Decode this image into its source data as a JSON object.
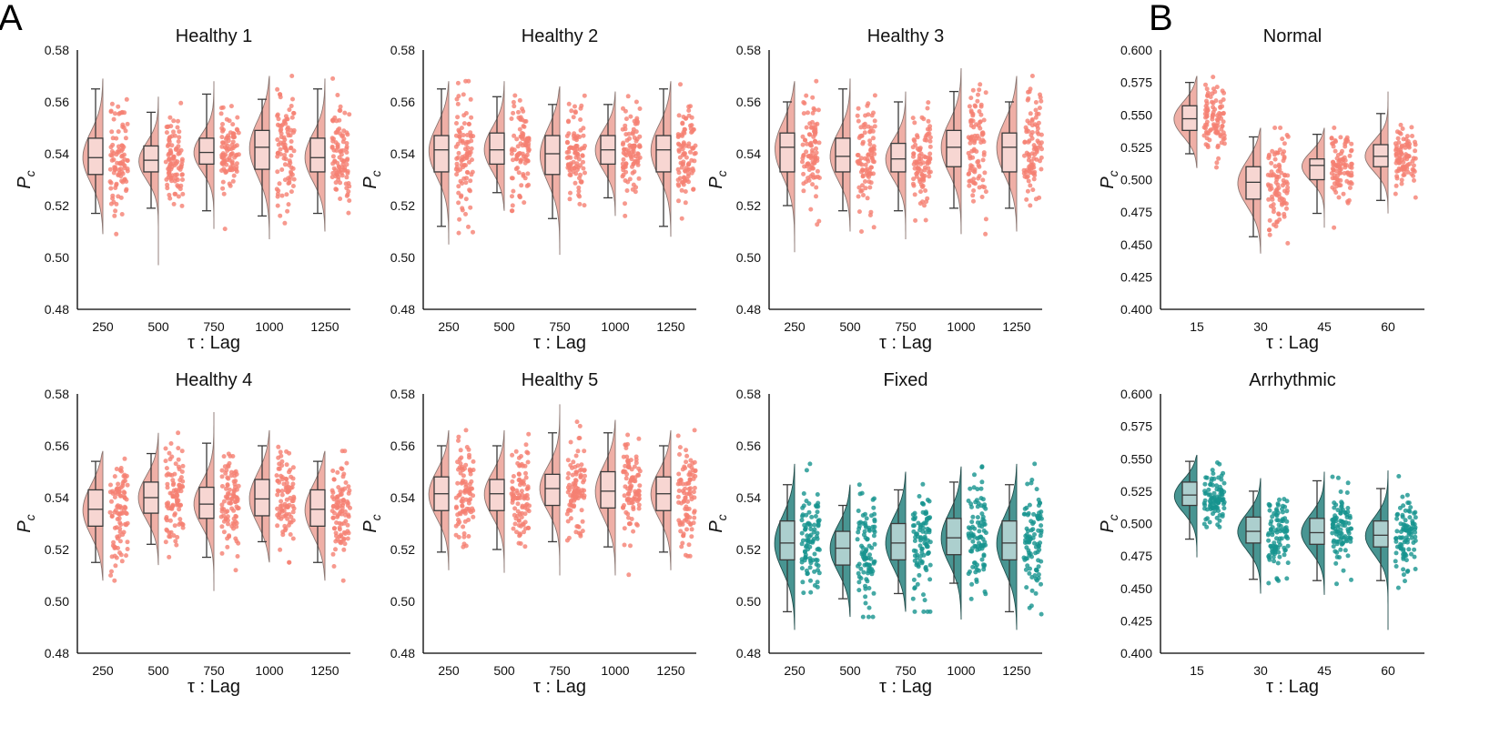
{
  "labels": {
    "panel_a": "A",
    "panel_b": "B"
  },
  "colors": {
    "salmon_fill": "#eeaba1",
    "salmon_point": "#f57f72",
    "teal_fill": "#3e8f8c",
    "teal_point": "#16948f",
    "box": "#3a3a3a"
  },
  "chart_data": [
    {
      "id": "h1",
      "type": "raincloud",
      "title": "Healthy 1",
      "xlabel": "τ :  Lag",
      "ylabel": "P_c",
      "color": "salmon",
      "categories": [
        "250",
        "500",
        "750",
        "1000",
        "1250"
      ],
      "ylim": [
        0.48,
        0.58
      ],
      "yticks": [
        "0.48",
        "0.50",
        "0.52",
        "0.54",
        "0.56",
        "0.58"
      ],
      "groups": [
        {
          "q1": 0.532,
          "median": 0.5385,
          "q3": 0.546,
          "wlo": 0.517,
          "whi": 0.565,
          "min": 0.509,
          "max": 0.569
        },
        {
          "q1": 0.533,
          "median": 0.5375,
          "q3": 0.543,
          "wlo": 0.519,
          "whi": 0.556,
          "min": 0.497,
          "max": 0.562
        },
        {
          "q1": 0.536,
          "median": 0.5405,
          "q3": 0.546,
          "wlo": 0.518,
          "whi": 0.563,
          "min": 0.511,
          "max": 0.568
        },
        {
          "q1": 0.534,
          "median": 0.5425,
          "q3": 0.549,
          "wlo": 0.516,
          "whi": 0.561,
          "min": 0.507,
          "max": 0.57
        },
        {
          "q1": 0.533,
          "median": 0.5385,
          "q3": 0.546,
          "wlo": 0.517,
          "whi": 0.565,
          "min": 0.51,
          "max": 0.569
        }
      ]
    },
    {
      "id": "h2",
      "type": "raincloud",
      "title": "Healthy 2",
      "xlabel": "τ :  Lag",
      "ylabel": "P_c",
      "color": "salmon",
      "categories": [
        "250",
        "500",
        "750",
        "1000",
        "1250"
      ],
      "ylim": [
        0.48,
        0.58
      ],
      "yticks": [
        "0.48",
        "0.50",
        "0.52",
        "0.54",
        "0.56",
        "0.58"
      ],
      "groups": [
        {
          "q1": 0.533,
          "median": 0.5415,
          "q3": 0.547,
          "wlo": 0.512,
          "whi": 0.565,
          "min": 0.505,
          "max": 0.568
        },
        {
          "q1": 0.536,
          "median": 0.5415,
          "q3": 0.548,
          "wlo": 0.525,
          "whi": 0.562,
          "min": 0.518,
          "max": 0.568
        },
        {
          "q1": 0.532,
          "median": 0.54,
          "q3": 0.547,
          "wlo": 0.515,
          "whi": 0.559,
          "min": 0.501,
          "max": 0.566
        },
        {
          "q1": 0.536,
          "median": 0.5415,
          "q3": 0.547,
          "wlo": 0.523,
          "whi": 0.559,
          "min": 0.516,
          "max": 0.564
        },
        {
          "q1": 0.533,
          "median": 0.5415,
          "q3": 0.547,
          "wlo": 0.512,
          "whi": 0.565,
          "min": 0.508,
          "max": 0.568
        }
      ]
    },
    {
      "id": "h3",
      "type": "raincloud",
      "title": "Healthy 3",
      "xlabel": "τ :  Lag",
      "ylabel": "P_c",
      "color": "salmon",
      "categories": [
        "250",
        "500",
        "750",
        "1000",
        "1250"
      ],
      "ylim": [
        0.48,
        0.58
      ],
      "yticks": [
        "0.48",
        "0.50",
        "0.52",
        "0.54",
        "0.56",
        "0.58"
      ],
      "groups": [
        {
          "q1": 0.533,
          "median": 0.5425,
          "q3": 0.548,
          "wlo": 0.52,
          "whi": 0.56,
          "min": 0.502,
          "max": 0.568
        },
        {
          "q1": 0.533,
          "median": 0.539,
          "q3": 0.546,
          "wlo": 0.518,
          "whi": 0.565,
          "min": 0.51,
          "max": 0.569
        },
        {
          "q1": 0.533,
          "median": 0.538,
          "q3": 0.544,
          "wlo": 0.518,
          "whi": 0.56,
          "min": 0.507,
          "max": 0.564
        },
        {
          "q1": 0.535,
          "median": 0.5425,
          "q3": 0.549,
          "wlo": 0.519,
          "whi": 0.564,
          "min": 0.509,
          "max": 0.573
        },
        {
          "q1": 0.533,
          "median": 0.5425,
          "q3": 0.548,
          "wlo": 0.519,
          "whi": 0.56,
          "min": 0.51,
          "max": 0.57
        }
      ]
    },
    {
      "id": "normal",
      "type": "raincloud",
      "title": "Normal",
      "xlabel": "τ :  Lag",
      "ylabel": "P_c",
      "color": "salmon",
      "categories": [
        "15",
        "30",
        "45",
        "60"
      ],
      "ylim": [
        0.4,
        0.6
      ],
      "yticks": [
        "0.400",
        "0.425",
        "0.450",
        "0.475",
        "0.500",
        "0.525",
        "0.550",
        "0.575",
        "0.600"
      ],
      "groups": [
        {
          "q1": 0.538,
          "median": 0.547,
          "q3": 0.557,
          "wlo": 0.52,
          "whi": 0.575,
          "min": 0.509,
          "max": 0.58
        },
        {
          "q1": 0.485,
          "median": 0.498,
          "q3": 0.51,
          "wlo": 0.456,
          "whi": 0.533,
          "min": 0.443,
          "max": 0.54
        },
        {
          "q1": 0.5,
          "median": 0.511,
          "q3": 0.516,
          "wlo": 0.474,
          "whi": 0.535,
          "min": 0.463,
          "max": 0.54
        },
        {
          "q1": 0.51,
          "median": 0.518,
          "q3": 0.527,
          "wlo": 0.484,
          "whi": 0.551,
          "min": 0.474,
          "max": 0.568
        }
      ]
    },
    {
      "id": "h4",
      "type": "raincloud",
      "title": "Healthy 4",
      "xlabel": "τ :  Lag",
      "ylabel": "P_c",
      "color": "salmon",
      "categories": [
        "250",
        "500",
        "750",
        "1000",
        "1250"
      ],
      "ylim": [
        0.48,
        0.58
      ],
      "yticks": [
        "0.48",
        "0.50",
        "0.52",
        "0.54",
        "0.56",
        "0.58"
      ],
      "groups": [
        {
          "q1": 0.529,
          "median": 0.5355,
          "q3": 0.543,
          "wlo": 0.515,
          "whi": 0.554,
          "min": 0.508,
          "max": 0.558
        },
        {
          "q1": 0.534,
          "median": 0.54,
          "q3": 0.546,
          "wlo": 0.522,
          "whi": 0.557,
          "min": 0.514,
          "max": 0.565
        },
        {
          "q1": 0.532,
          "median": 0.5375,
          "q3": 0.544,
          "wlo": 0.517,
          "whi": 0.561,
          "min": 0.504,
          "max": 0.573
        },
        {
          "q1": 0.533,
          "median": 0.5395,
          "q3": 0.547,
          "wlo": 0.523,
          "whi": 0.56,
          "min": 0.515,
          "max": 0.566
        },
        {
          "q1": 0.529,
          "median": 0.5355,
          "q3": 0.543,
          "wlo": 0.515,
          "whi": 0.554,
          "min": 0.508,
          "max": 0.558
        }
      ]
    },
    {
      "id": "h5",
      "type": "raincloud",
      "title": "Healthy 5",
      "xlabel": "τ :  Lag",
      "ylabel": "P_c",
      "color": "salmon",
      "categories": [
        "250",
        "500",
        "750",
        "1000",
        "1250"
      ],
      "ylim": [
        0.48,
        0.58
      ],
      "yticks": [
        "0.48",
        "0.50",
        "0.52",
        "0.54",
        "0.56",
        "0.58"
      ],
      "groups": [
        {
          "q1": 0.535,
          "median": 0.5415,
          "q3": 0.548,
          "wlo": 0.519,
          "whi": 0.56,
          "min": 0.512,
          "max": 0.566
        },
        {
          "q1": 0.535,
          "median": 0.5415,
          "q3": 0.547,
          "wlo": 0.52,
          "whi": 0.56,
          "min": 0.511,
          "max": 0.566
        },
        {
          "q1": 0.537,
          "median": 0.5435,
          "q3": 0.549,
          "wlo": 0.523,
          "whi": 0.565,
          "min": 0.51,
          "max": 0.576
        },
        {
          "q1": 0.536,
          "median": 0.5425,
          "q3": 0.55,
          "wlo": 0.521,
          "whi": 0.565,
          "min": 0.51,
          "max": 0.57
        },
        {
          "q1": 0.535,
          "median": 0.5415,
          "q3": 0.548,
          "wlo": 0.519,
          "whi": 0.56,
          "min": 0.512,
          "max": 0.566
        }
      ]
    },
    {
      "id": "fixed",
      "type": "raincloud",
      "title": "Fixed",
      "xlabel": "τ :  Lag",
      "ylabel": "P_c",
      "color": "teal",
      "categories": [
        "250",
        "500",
        "750",
        "1000",
        "1250"
      ],
      "ylim": [
        0.48,
        0.58
      ],
      "yticks": [
        "0.48",
        "0.50",
        "0.52",
        "0.54",
        "0.56",
        "0.58"
      ],
      "groups": [
        {
          "q1": 0.516,
          "median": 0.5225,
          "q3": 0.531,
          "wlo": 0.496,
          "whi": 0.545,
          "min": 0.489,
          "max": 0.553
        },
        {
          "q1": 0.514,
          "median": 0.5205,
          "q3": 0.527,
          "wlo": 0.501,
          "whi": 0.537,
          "min": 0.494,
          "max": 0.545
        },
        {
          "q1": 0.516,
          "median": 0.5225,
          "q3": 0.53,
          "wlo": 0.503,
          "whi": 0.543,
          "min": 0.496,
          "max": 0.55
        },
        {
          "q1": 0.518,
          "median": 0.5245,
          "q3": 0.532,
          "wlo": 0.507,
          "whi": 0.546,
          "min": 0.493,
          "max": 0.552
        },
        {
          "q1": 0.516,
          "median": 0.5225,
          "q3": 0.531,
          "wlo": 0.496,
          "whi": 0.545,
          "min": 0.489,
          "max": 0.553
        }
      ]
    },
    {
      "id": "arrhythmic",
      "type": "raincloud",
      "title": "Arrhythmic",
      "xlabel": "τ :  Lag",
      "ylabel": "P_c",
      "color": "teal",
      "categories": [
        "15",
        "30",
        "45",
        "60"
      ],
      "ylim": [
        0.4,
        0.6
      ],
      "yticks": [
        "0.400",
        "0.425",
        "0.450",
        "0.475",
        "0.500",
        "0.525",
        "0.550",
        "0.575",
        "0.600"
      ],
      "groups": [
        {
          "q1": 0.514,
          "median": 0.522,
          "q3": 0.532,
          "wlo": 0.488,
          "whi": 0.548,
          "min": 0.474,
          "max": 0.553
        },
        {
          "q1": 0.485,
          "median": 0.494,
          "q3": 0.505,
          "wlo": 0.457,
          "whi": 0.525,
          "min": 0.446,
          "max": 0.535
        },
        {
          "q1": 0.484,
          "median": 0.493,
          "q3": 0.504,
          "wlo": 0.456,
          "whi": 0.533,
          "min": 0.445,
          "max": 0.54
        },
        {
          "q1": 0.482,
          "median": 0.491,
          "q3": 0.502,
          "wlo": 0.456,
          "whi": 0.527,
          "min": 0.418,
          "max": 0.541
        }
      ]
    }
  ]
}
